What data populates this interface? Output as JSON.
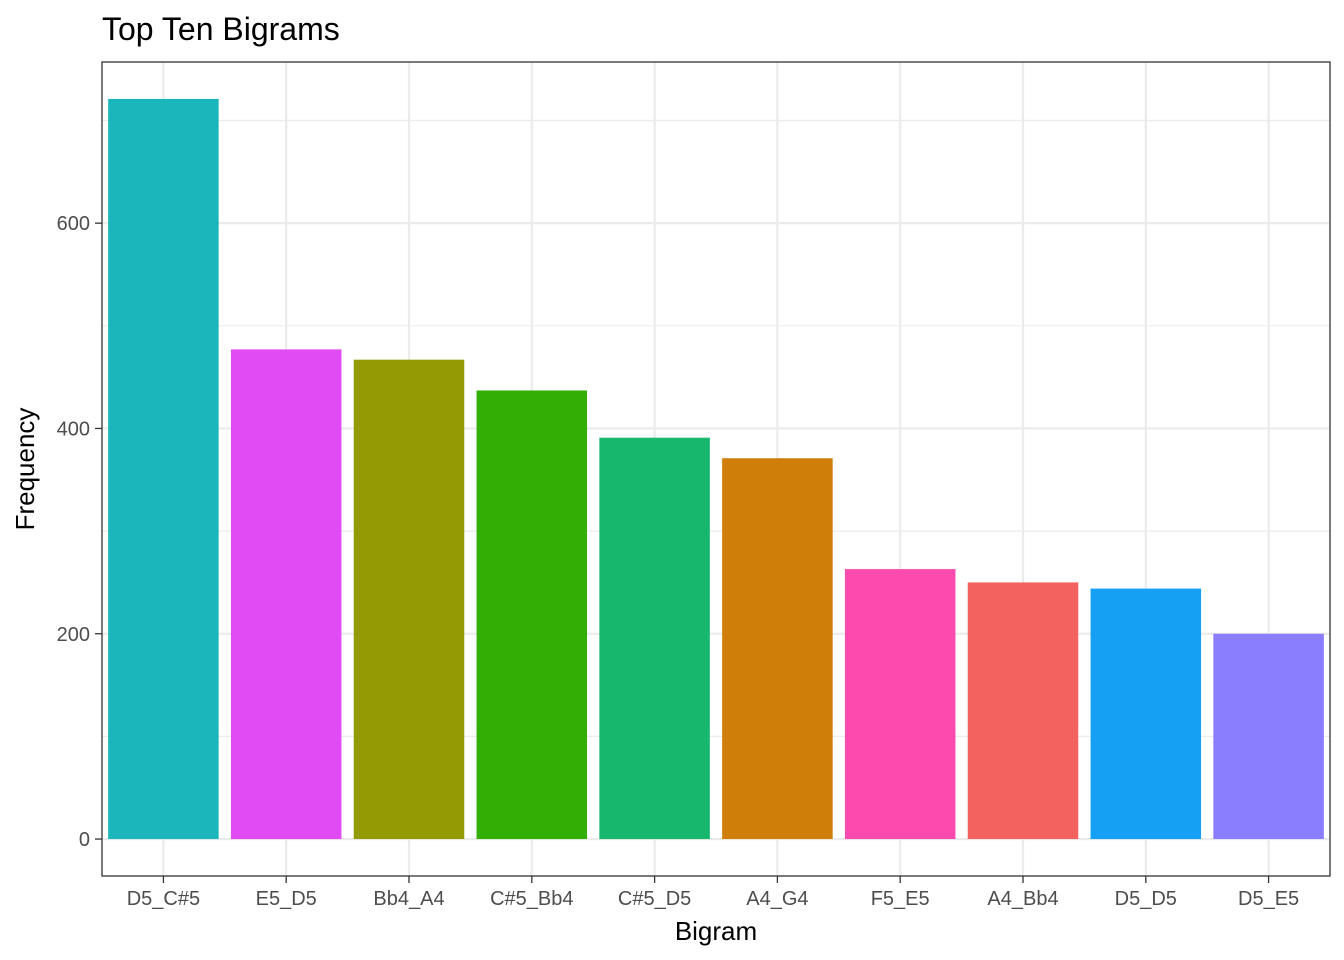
{
  "chart_data": {
    "type": "bar",
    "title": "Top Ten Bigrams",
    "xlabel": "Bigram",
    "ylabel": "Frequency",
    "categories": [
      "D5_C#5",
      "E5_D5",
      "Bb4_A4",
      "C#5_Bb4",
      "C#5_D5",
      "A4_G4",
      "F5_E5",
      "A4_Bb4",
      "D5_D5",
      "D5_E5"
    ],
    "values": [
      721,
      477,
      467,
      437,
      391,
      371,
      263,
      250,
      244,
      200
    ],
    "colors": [
      "#1BB6BC",
      "#E04BF3",
      "#939A03",
      "#33AE05",
      "#18B76E",
      "#CF7E09",
      "#FD4AAE",
      "#F3625E",
      "#16A0F3",
      "#8A7DFE"
    ],
    "y_ticks": [
      0,
      200,
      400,
      600
    ],
    "ylim": [
      -36,
      757
    ],
    "grid": true,
    "legend": "none"
  }
}
